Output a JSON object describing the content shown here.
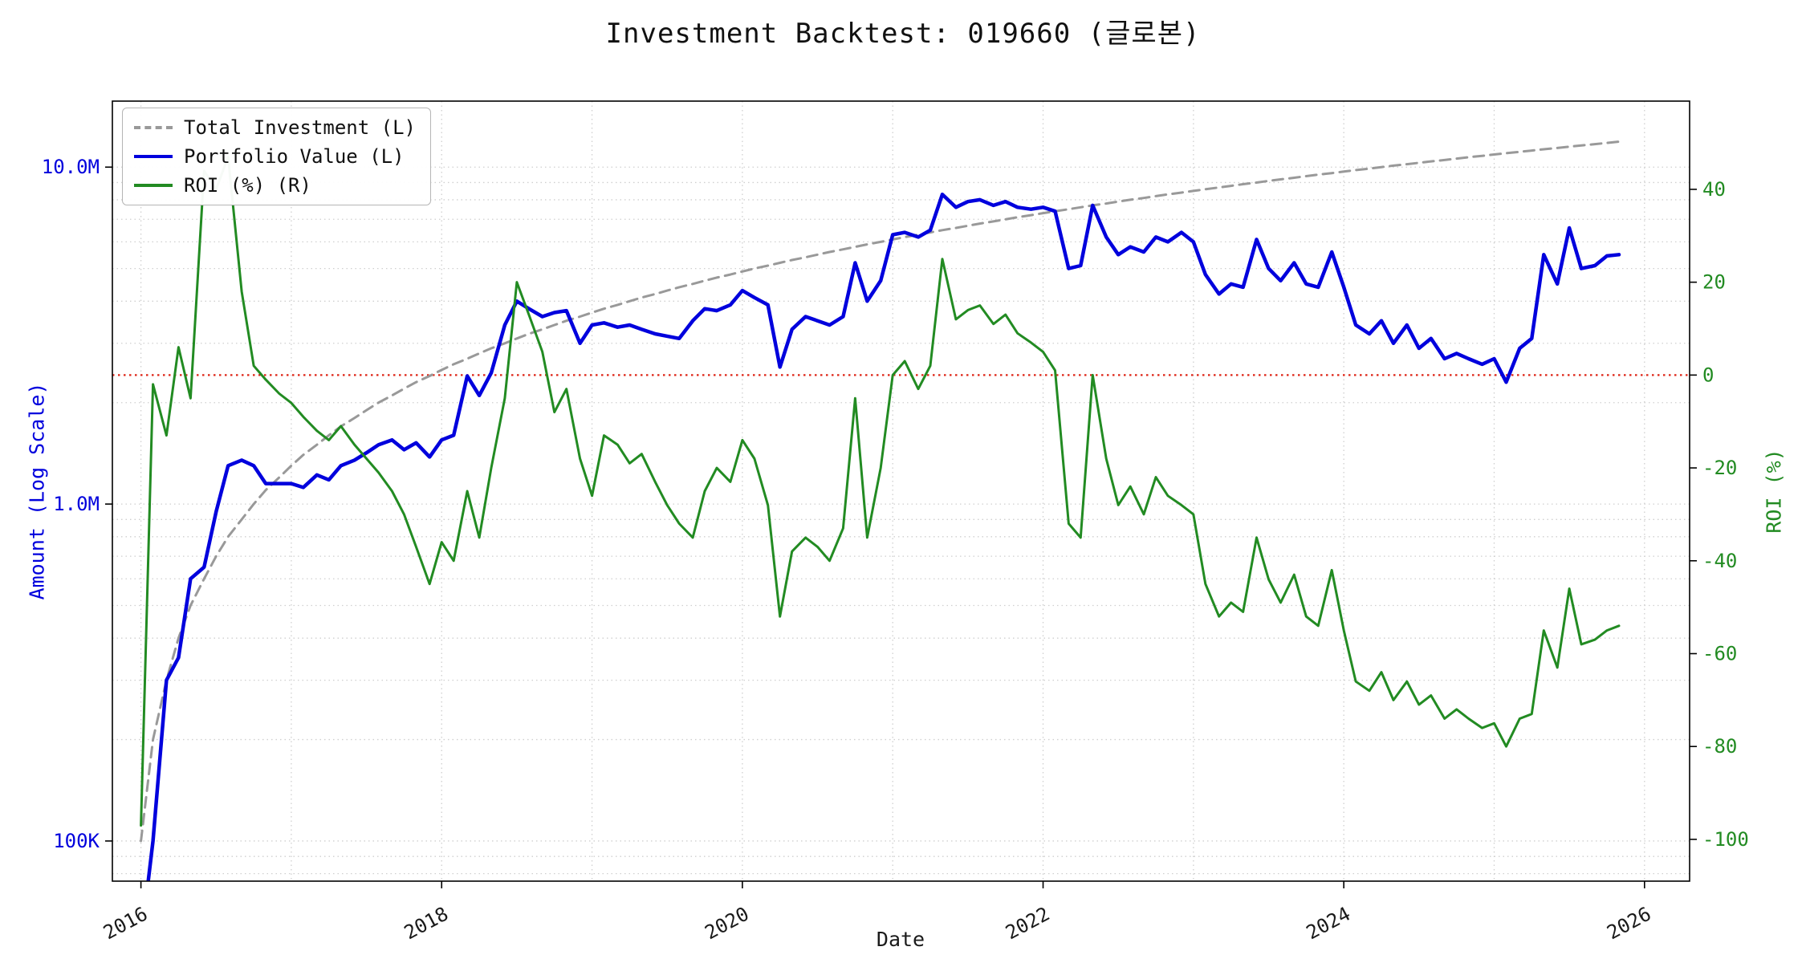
{
  "title": "Investment Backtest: 019660 (글로본)",
  "colors": {
    "portfolio_blue": "#0000dd",
    "roi_green": "#228b22",
    "investment_gray": "#999999",
    "zero_line_red": "#dd2213",
    "grid": "#cfcfcf",
    "axis_text": "#1a1a1a"
  },
  "legend": [
    {
      "label": "Total Investment (L)",
      "color": "#999999",
      "dash": true
    },
    {
      "label": "Portfolio Value (L)",
      "color": "#0000dd",
      "dash": false
    },
    {
      "label": "ROI (%) (R)",
      "color": "#228b22",
      "dash": false
    }
  ],
  "axes": {
    "x": {
      "label": "Date",
      "ticks": [
        2016,
        2018,
        2020,
        2022,
        2024,
        2026
      ],
      "grid_years": [
        2016,
        2017,
        2018,
        2019,
        2020,
        2021,
        2022,
        2023,
        2024,
        2025,
        2026
      ],
      "range": [
        2015.81,
        2026.3
      ]
    },
    "y_left": {
      "label": "Amount (Log Scale)",
      "scale": "log",
      "color": "#0000dd",
      "ticks": [
        {
          "value": 10,
          "label": "10.0M"
        },
        {
          "value": 1,
          "label": "1.0M"
        },
        {
          "value": 0.1,
          "label": "100K"
        }
      ],
      "grid_values": [
        0.08,
        0.09,
        0.1,
        0.2,
        0.3,
        0.4,
        0.5,
        0.6,
        0.7,
        0.8,
        0.9,
        1,
        2,
        3,
        4,
        5,
        6,
        7,
        8,
        9,
        10
      ],
      "range": [
        0.076,
        15.7
      ],
      "units": "millions"
    },
    "y_right": {
      "label": "ROI (%)",
      "color": "#228b22",
      "ticks": [
        -100,
        -80,
        -60,
        -40,
        -20,
        0,
        20,
        40
      ],
      "range": [
        -109,
        59
      ]
    },
    "zero_line": {
      "value": 0,
      "axis": "right",
      "color": "#dd2213",
      "style": "dotted"
    }
  },
  "chart_data": {
    "type": "line",
    "title": "Investment Backtest: 019660 (글로본)",
    "xlabel": "Date",
    "ylabel_left": "Amount (Log Scale)",
    "ylabel_right": "ROI (%)",
    "y_left_scale": "log",
    "y_left_units": "millions (KRW)",
    "legend_position": "upper left",
    "grid": true,
    "annotations": [
      {
        "type": "hline",
        "axis": "right",
        "value": 0,
        "color": "#dd2213",
        "style": "dotted"
      }
    ],
    "x": [
      2016.0,
      2016.08,
      2016.17,
      2016.25,
      2016.33,
      2016.42,
      2016.5,
      2016.58,
      2016.67,
      2016.75,
      2016.83,
      2016.92,
      2017.0,
      2017.08,
      2017.17,
      2017.25,
      2017.33,
      2017.42,
      2017.5,
      2017.58,
      2017.67,
      2017.75,
      2017.83,
      2017.92,
      2018.0,
      2018.08,
      2018.17,
      2018.25,
      2018.33,
      2018.42,
      2018.5,
      2018.58,
      2018.67,
      2018.75,
      2018.83,
      2018.92,
      2019.0,
      2019.08,
      2019.17,
      2019.25,
      2019.33,
      2019.42,
      2019.5,
      2019.58,
      2019.67,
      2019.75,
      2019.83,
      2019.92,
      2020.0,
      2020.08,
      2020.17,
      2020.25,
      2020.33,
      2020.42,
      2020.5,
      2020.58,
      2020.67,
      2020.75,
      2020.83,
      2020.92,
      2021.0,
      2021.08,
      2021.17,
      2021.25,
      2021.33,
      2021.42,
      2021.5,
      2021.58,
      2021.67,
      2021.75,
      2021.83,
      2021.92,
      2022.0,
      2022.08,
      2022.17,
      2022.25,
      2022.33,
      2022.42,
      2022.5,
      2022.58,
      2022.67,
      2022.75,
      2022.83,
      2022.92,
      2023.0,
      2023.08,
      2023.17,
      2023.25,
      2023.33,
      2023.42,
      2023.5,
      2023.58,
      2023.67,
      2023.75,
      2023.83,
      2023.92,
      2024.0,
      2024.08,
      2024.17,
      2024.25,
      2024.33,
      2024.42,
      2024.5,
      2024.58,
      2024.67,
      2024.75,
      2024.83,
      2024.92,
      2025.0,
      2025.08,
      2025.17,
      2025.25,
      2025.33,
      2025.42,
      2025.5,
      2025.58,
      2025.67,
      2025.75,
      2025.83
    ],
    "series": [
      {
        "name": "Total Investment (L)",
        "id": "total-investment",
        "axis": "left",
        "color": "#999999",
        "width": 3,
        "dash": "13 8",
        "values": [
          0.1,
          0.2,
          0.3,
          0.4,
          0.5,
          0.6,
          0.7,
          0.8,
          0.9,
          1.0,
          1.1,
          1.2,
          1.3,
          1.4,
          1.5,
          1.6,
          1.7,
          1.8,
          1.9,
          2.0,
          2.1,
          2.2,
          2.3,
          2.4,
          2.5,
          2.6,
          2.7,
          2.8,
          2.9,
          3.0,
          3.1,
          3.2,
          3.3,
          3.4,
          3.5,
          3.6,
          3.7,
          3.8,
          3.9,
          4.0,
          4.1,
          4.2,
          4.3,
          4.4,
          4.5,
          4.6,
          4.7,
          4.8,
          4.9,
          5.0,
          5.1,
          5.2,
          5.3,
          5.4,
          5.5,
          5.6,
          5.7,
          5.8,
          5.9,
          6.0,
          6.1,
          6.2,
          6.3,
          6.4,
          6.5,
          6.6,
          6.7,
          6.8,
          6.9,
          7.0,
          7.1,
          7.2,
          7.3,
          7.4,
          7.5,
          7.6,
          7.7,
          7.8,
          7.9,
          8.0,
          8.1,
          8.2,
          8.3,
          8.4,
          8.5,
          8.6,
          8.7,
          8.8,
          8.9,
          9.0,
          9.1,
          9.2,
          9.3,
          9.4,
          9.5,
          9.6,
          9.7,
          9.8,
          9.9,
          10.0,
          10.1,
          10.2,
          10.3,
          10.4,
          10.5,
          10.6,
          10.7,
          10.8,
          10.9,
          11.0,
          11.1,
          11.2,
          11.3,
          11.4,
          11.5,
          11.6,
          11.7,
          11.8,
          11.9
        ]
      },
      {
        "name": "Portfolio Value (L)",
        "id": "portfolio-value",
        "axis": "left",
        "color": "#0000dd",
        "width": 4.5,
        "dash": null,
        "values": [
          0.05,
          0.1,
          0.3,
          0.35,
          0.6,
          0.65,
          0.95,
          1.3,
          1.35,
          1.3,
          1.15,
          1.15,
          1.15,
          1.12,
          1.22,
          1.18,
          1.3,
          1.35,
          1.42,
          1.5,
          1.55,
          1.45,
          1.52,
          1.38,
          1.55,
          1.6,
          2.4,
          2.1,
          2.45,
          3.4,
          4.0,
          3.8,
          3.6,
          3.7,
          3.75,
          3.0,
          3.4,
          3.45,
          3.35,
          3.4,
          3.3,
          3.2,
          3.15,
          3.1,
          3.5,
          3.8,
          3.75,
          3.9,
          4.3,
          4.1,
          3.9,
          2.55,
          3.3,
          3.6,
          3.5,
          3.4,
          3.6,
          5.2,
          4.0,
          4.6,
          6.3,
          6.4,
          6.2,
          6.5,
          8.3,
          7.6,
          7.9,
          8.0,
          7.7,
          7.9,
          7.6,
          7.5,
          7.6,
          7.4,
          5.0,
          5.1,
          7.7,
          6.2,
          5.5,
          5.8,
          5.6,
          6.2,
          6.0,
          6.4,
          6.0,
          4.8,
          4.2,
          4.5,
          4.4,
          6.1,
          5.0,
          4.6,
          5.2,
          4.5,
          4.4,
          5.6,
          4.4,
          3.4,
          3.2,
          3.5,
          3.0,
          3.4,
          2.9,
          3.1,
          2.7,
          2.8,
          2.7,
          2.6,
          2.7,
          2.3,
          2.9,
          3.1,
          5.5,
          4.5,
          6.6,
          5.0,
          5.1,
          5.45,
          5.5
        ]
      },
      {
        "name": "ROI (%) (R)",
        "id": "roi-percent",
        "axis": "right",
        "color": "#228b22",
        "width": 3,
        "dash": null,
        "values": [
          -97,
          -2,
          -13,
          6,
          -5,
          44,
          40,
          47,
          18,
          2,
          -1,
          -4,
          -6,
          -9,
          -12,
          -14,
          -11,
          -15,
          -18,
          -21,
          -25,
          -30,
          -37,
          -45,
          -36,
          -40,
          -25,
          -35,
          -20,
          -5,
          20,
          13,
          5,
          -8,
          -3,
          -18,
          -26,
          -13,
          -15,
          -19,
          -17,
          -23,
          -28,
          -32,
          -35,
          -25,
          -20,
          -23,
          -14,
          -18,
          -28,
          -52,
          -38,
          -35,
          -37,
          -40,
          -33,
          -5,
          -35,
          -20,
          0,
          3,
          -3,
          2,
          25,
          12,
          14,
          15,
          11,
          13,
          9,
          7,
          5,
          1,
          -32,
          -35,
          0,
          -18,
          -28,
          -24,
          -30,
          -22,
          -26,
          -28,
          -30,
          -45,
          -52,
          -49,
          -51,
          -35,
          -44,
          -49,
          -43,
          -52,
          -54,
          -42,
          -55,
          -66,
          -68,
          -64,
          -70,
          -66,
          -71,
          -69,
          -74,
          -72,
          -74,
          -76,
          -75,
          -80,
          -74,
          -73,
          -55,
          -63,
          -46,
          -58,
          -57,
          -55,
          -54
        ]
      }
    ]
  }
}
